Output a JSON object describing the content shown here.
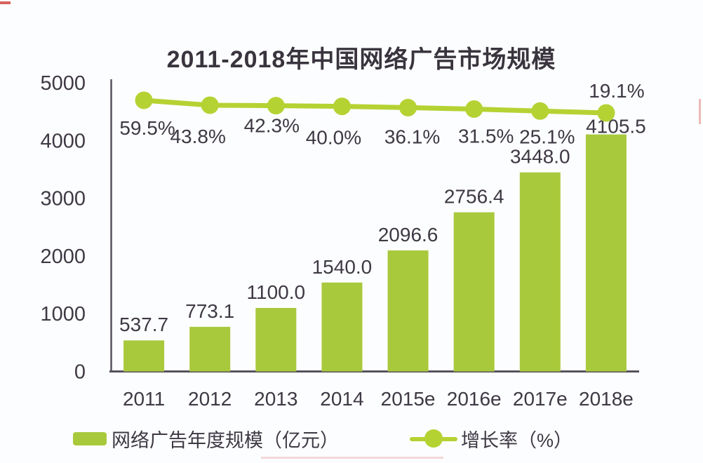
{
  "page": {
    "background_color": "#fcfdfe"
  },
  "chart_data": {
    "type": "bar+line",
    "title": "2011-2018年中国网络广告市场规模",
    "categories": [
      "2011",
      "2012",
      "2013",
      "2014",
      "2015e",
      "2016e",
      "2017e",
      "2018e"
    ],
    "series": [
      {
        "name": "网络广告年度规模（亿元）",
        "type": "bar",
        "values": [
          537.7,
          773.1,
          1100.0,
          1540.0,
          2096.6,
          2756.4,
          3448.0,
          4105.5
        ],
        "data_labels": [
          "537.7",
          "773.1",
          "1100.0",
          "1540.0",
          "2096.6",
          "2756.4",
          "3448.0",
          "4105.5"
        ],
        "color": "#a9c93c"
      },
      {
        "name": "增长率（%）",
        "type": "line",
        "values": [
          59.5,
          43.8,
          42.3,
          40.0,
          36.1,
          31.5,
          25.1,
          19.1
        ],
        "data_labels": [
          "59.5%",
          "43.8%",
          "42.3%",
          "40.0%",
          "36.1%",
          "31.5%",
          "25.1%",
          "19.1%"
        ],
        "color": "#b5d233"
      }
    ],
    "y_axis": {
      "ticks": [
        0,
        1000,
        2000,
        3000,
        4000,
        5000
      ],
      "max": 5000
    },
    "legend": {
      "items": [
        "网络广告年度规模（亿元）",
        "增长率（%）"
      ],
      "position": "bottom"
    },
    "grid": "off",
    "colors": {
      "bar": "#a9c93c",
      "line": "#b5d233",
      "text": "#3e3944",
      "title": "#39343d",
      "axis": "#56525e"
    }
  }
}
